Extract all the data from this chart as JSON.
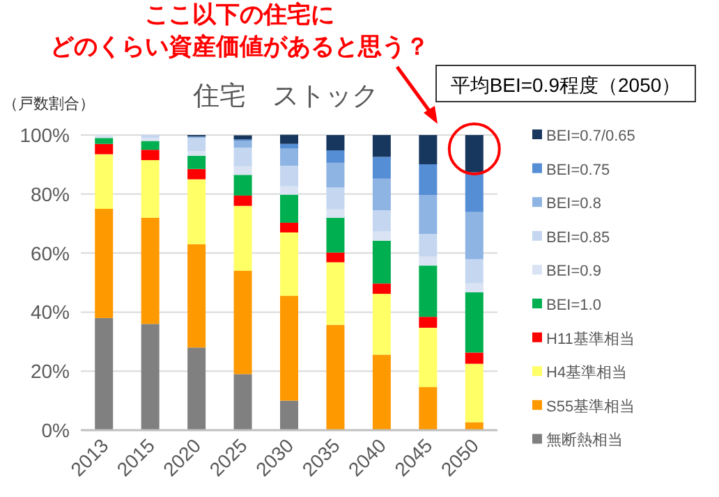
{
  "chart_data": {
    "type": "bar",
    "stacked": true,
    "title": "住宅　ストック",
    "ylabel": "（戸数割合）",
    "annotations": [
      "ここ以下の住宅に",
      "どのくらい資産価値があると思う？",
      "平均BEI=0.9程度（2050）"
    ],
    "categories": [
      "2013",
      "2015",
      "2020",
      "2025",
      "2030",
      "2035",
      "2040",
      "2045",
      "2050"
    ],
    "ylim": [
      0,
      100
    ],
    "yticks": [
      {
        "value": 0,
        "label": "0%"
      },
      {
        "value": 20,
        "label": "20%"
      },
      {
        "value": 40,
        "label": "40%"
      },
      {
        "value": 60,
        "label": "60%"
      },
      {
        "value": 80,
        "label": "80%"
      },
      {
        "value": 100,
        "label": "100%"
      }
    ],
    "grid": "y",
    "legend": "right",
    "series": [
      {
        "name": "無断熱相当",
        "color": "#808080",
        "values": [
          38,
          36,
          28,
          19,
          10,
          0,
          0,
          0,
          0
        ]
      },
      {
        "name": "S55基準相当",
        "color": "#ff9900",
        "values": [
          37,
          36,
          35,
          35,
          35.5,
          35.7,
          25.6,
          14.6,
          2.7
        ]
      },
      {
        "name": "H4基準相当",
        "color": "#ffff66",
        "values": [
          18.5,
          19.5,
          22,
          22,
          21.5,
          21.2,
          20.6,
          20.1,
          19.8
        ]
      },
      {
        "name": "H11基準相当",
        "color": "#ff0000",
        "values": [
          3.5,
          3.5,
          3.5,
          3.5,
          3.3,
          3.3,
          3.5,
          3.7,
          3.8
        ]
      },
      {
        "name": "BEI=1.0",
        "color": "#00b050",
        "values": [
          2,
          3,
          4.5,
          7,
          9.5,
          11.8,
          14.5,
          17.4,
          20.4
        ]
      },
      {
        "name": "BEI=0.9",
        "color": "#dae3f3",
        "values": [
          1,
          1,
          1.5,
          2.9,
          2.8,
          2.8,
          3.1,
          3,
          3.1
        ]
      },
      {
        "name": "BEI=0.85",
        "color": "#c5d7f0",
        "values": [
          0,
          1,
          4.5,
          6.3,
          7,
          7.4,
          7.2,
          7.7,
          8.1
        ]
      },
      {
        "name": "BEI=0.8",
        "color": "#8eb4e3",
        "values": [
          0,
          0,
          0.5,
          2.3,
          5.8,
          8.4,
          10.7,
          13.1,
          16
        ]
      },
      {
        "name": "BEI=0.75",
        "color": "#558ed5",
        "values": [
          0,
          0,
          0,
          0.5,
          1.6,
          4.2,
          7.4,
          10.5,
          13.5
        ]
      },
      {
        "name": "BEI=0.7/0.65",
        "color": "#17375e",
        "values": [
          0,
          0,
          0.5,
          1.4,
          3.1,
          5.2,
          7.4,
          9.9,
          12.6
        ]
      }
    ]
  }
}
